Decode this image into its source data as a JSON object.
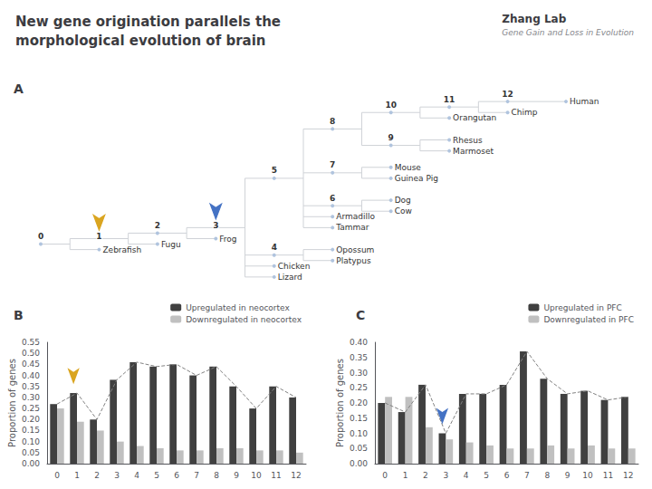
{
  "chart_data": [
    {
      "type": "header",
      "title": "New gene origination parallels the\nmorphological evolution of brain",
      "annotations": [
        "Zhang Lab",
        "Gene Gain and Loss in Evolution"
      ]
    },
    {
      "type": "tree",
      "title": "A",
      "nodes": {
        "name": "0",
        "children": [
          {
            "name": "1",
            "children": [
              {
                "name": "2",
                "children": [
                  {
                    "name": "3",
                    "children": [
                      {
                        "name": "5",
                        "children": [
                          {
                            "name": "8",
                            "children": [
                              {
                                "name": "10",
                                "children": [
                                  {
                                    "name": "11",
                                    "children": [
                                      {
                                        "name": "12",
                                        "children": [
                                          {
                                            "name": "Human"
                                          }
                                        ]
                                      },
                                      {
                                        "name": "Chimp"
                                      }
                                    ]
                                  },
                                  {
                                    "name": "Orangutan"
                                  }
                                ]
                              },
                              {
                                "name": "9",
                                "children": [
                                  {
                                    "name": "Rhesus"
                                  },
                                  {
                                    "name": "Marmoset"
                                  }
                                ]
                              }
                            ]
                          },
                          {
                            "name": "7",
                            "children": [
                              {
                                "name": "Mouse"
                              },
                              {
                                "name": "Guinea Pig"
                              }
                            ]
                          },
                          {
                            "name": "6",
                            "children": [
                              {
                                "name": "Dog"
                              },
                              {
                                "name": "Cow"
                              }
                            ]
                          },
                          {
                            "name": "Armadillo"
                          },
                          {
                            "name": "Tammar"
                          }
                        ]
                      },
                      {
                        "name": "4",
                        "children": [
                          {
                            "name": "Opossum"
                          },
                          {
                            "name": "Platypus"
                          }
                        ]
                      },
                      {
                        "name": "Chicken"
                      },
                      {
                        "name": "Lizard"
                      }
                    ]
                  },
                  {
                    "name": "Frog"
                  }
                ]
              },
              {
                "name": "Fugu"
              }
            ]
          },
          {
            "name": "Zebrafish"
          }
        ]
      },
      "arrows": [
        {
          "node": "1",
          "color": "#DAA520"
        },
        {
          "node": "3",
          "color": "#4472c4"
        }
      ]
    },
    {
      "type": "bar",
      "title": "B",
      "categories": [
        "0",
        "1",
        "2",
        "3",
        "4",
        "5",
        "6",
        "7",
        "8",
        "9",
        "10",
        "11",
        "12"
      ],
      "ylabel": "Proportion of genes",
      "ylim": [
        0,
        0.55
      ],
      "yticks": [
        {
          "value": 0,
          "label": "0.00"
        },
        0.05,
        {
          "value": 0.1,
          "label": "0.10"
        },
        0.15,
        {
          "value": 0.2,
          "label": "0.20"
        },
        0.25,
        {
          "value": 0.3,
          "label": "0.30"
        },
        0.35,
        {
          "value": 0.4,
          "label": "0.40"
        },
        0.45,
        {
          "value": 0.5,
          "label": "0.50"
        },
        0.55
      ],
      "grid": false,
      "legend": "upper right",
      "series": [
        {
          "name": "Upregulated in neocortex",
          "color": "#404040",
          "values": [
            0.27,
            0.32,
            0.2,
            0.38,
            0.46,
            0.44,
            0.45,
            0.4,
            0.44,
            0.35,
            0.25,
            0.35,
            0.3
          ]
        },
        {
          "name": "Downregulated in neocortex",
          "color": "#c0c0c0",
          "values": [
            0.25,
            0.19,
            0.15,
            0.1,
            0.08,
            0.07,
            0.06,
            0.06,
            0.07,
            0.07,
            0.06,
            0.06,
            0.05
          ]
        },
        {
          "type": "line",
          "line_style": "dashed",
          "color": "#808080",
          "values": [
            0.27,
            0.32,
            0.2,
            0.38,
            0.46,
            0.44,
            0.45,
            0.4,
            0.44,
            0.35,
            0.25,
            0.35,
            0.3
          ]
        }
      ],
      "arrow": {
        "category": "1",
        "color": "#DAA520"
      }
    },
    {
      "type": "bar",
      "title": "C",
      "categories": [
        "0",
        "1",
        "2",
        "3",
        "4",
        "5",
        "6",
        "7",
        "8",
        "9",
        "10",
        "11",
        "12"
      ],
      "ylabel": "Proportion of genes",
      "ylim": [
        0,
        0.4
      ],
      "yticks": [
        {
          "value": 0,
          "label": "0.00"
        },
        0.05,
        {
          "value": 0.1,
          "label": "0.10"
        },
        0.15,
        {
          "value": 0.2,
          "label": "0.20"
        },
        0.25,
        {
          "value": 0.3,
          "label": "0.30"
        },
        0.35,
        {
          "value": 0.4,
          "label": "0.40"
        }
      ],
      "grid": false,
      "legend": "upper right",
      "series": [
        {
          "name": "Upregulated in PFC",
          "color": "#404040",
          "values": [
            0.2,
            0.17,
            0.26,
            0.1,
            0.23,
            0.23,
            0.26,
            0.37,
            0.28,
            0.23,
            0.24,
            0.21,
            0.22
          ]
        },
        {
          "name": "Downregulated in PFC",
          "color": "#c0c0c0",
          "values": [
            0.22,
            0.22,
            0.12,
            0.08,
            0.07,
            0.06,
            0.05,
            0.05,
            0.06,
            0.05,
            0.06,
            0.05,
            0.05
          ]
        },
        {
          "type": "line",
          "line_style": "dashed",
          "color": "#808080",
          "values": [
            0.2,
            0.17,
            0.26,
            0.1,
            0.23,
            0.23,
            0.26,
            0.37,
            0.28,
            0.23,
            0.24,
            0.21,
            0.22
          ]
        }
      ],
      "arrow": {
        "category": "3",
        "color": "#4472c4"
      }
    }
  ]
}
